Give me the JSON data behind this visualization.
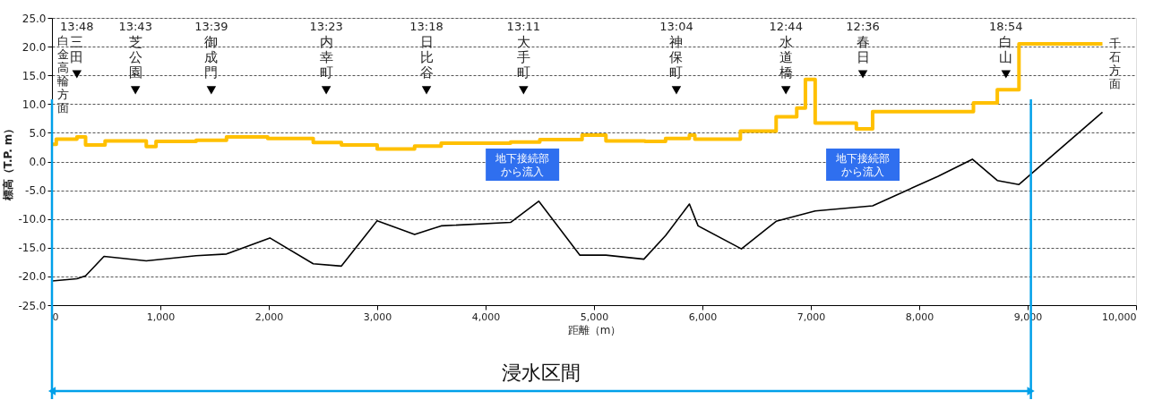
{
  "chart_data": {
    "type": "line",
    "xlabel": "距離（m）",
    "ylabel": "標高（T.P. m）",
    "xlim": [
      0,
      10000
    ],
    "xticks": [
      0,
      {
        "value": 1000,
        "label": "1,000"
      },
      {
        "value": 2000,
        "label": "2,000"
      },
      {
        "value": 3000,
        "label": "3,000"
      },
      {
        "value": 4000,
        "label": "4,000"
      },
      {
        "value": 5000,
        "label": "5,000"
      },
      {
        "value": 6000,
        "label": "6,000"
      },
      {
        "value": 7000,
        "label": "7,000"
      },
      {
        "value": 8000,
        "label": "8,000"
      },
      {
        "value": 9000,
        "label": "9,000"
      },
      {
        "value": 10000,
        "label": "10,000"
      }
    ],
    "ylim": [
      -25,
      25
    ],
    "yticks": [
      {
        "value": -25,
        "label": "-25.0"
      },
      {
        "value": -20,
        "label": "-20.0"
      },
      {
        "value": -15,
        "label": "-15.0"
      },
      {
        "value": -10,
        "label": "-10.0"
      },
      {
        "value": -5,
        "label": "-5.0"
      },
      {
        "value": 0,
        "label": "0.0"
      },
      {
        "value": 5,
        "label": "5.0"
      },
      {
        "value": 10,
        "label": "10.0"
      },
      {
        "value": 15,
        "label": "15.0"
      },
      {
        "value": 20,
        "label": "20.0"
      },
      {
        "value": 25,
        "label": "25.0"
      }
    ],
    "grid": "y",
    "series": [
      {
        "type": "step",
        "color": "#ffc000",
        "x": [
          0,
          40,
          230,
          310,
          490,
          870,
          960,
          1330,
          1610,
          1990,
          2410,
          2670,
          3000,
          3345,
          3590,
          4230,
          4500,
          4890,
          5110,
          5470,
          5660,
          5880,
          5930,
          6350,
          6680,
          6870,
          6950,
          7040,
          7420,
          7570,
          8500,
          8720,
          8920,
          9690
        ],
        "values": [
          3.0,
          3.9,
          4.3,
          2.9,
          3.6,
          2.6,
          3.5,
          3.7,
          4.3,
          4.0,
          3.3,
          2.9,
          2.2,
          2.7,
          3.2,
          3.4,
          3.8,
          4.6,
          3.6,
          3.5,
          4.0,
          4.6,
          3.9,
          5.3,
          7.8,
          9.3,
          14.3,
          6.7,
          5.7,
          8.7,
          10.2,
          12.5,
          20.5,
          20.5
        ]
      },
      {
        "color": "#000000",
        "x": [
          0,
          230,
          310,
          480,
          870,
          1330,
          1610,
          2010,
          2410,
          2670,
          3000,
          3345,
          3590,
          4230,
          4490,
          4870,
          5110,
          5460,
          5660,
          5880,
          5960,
          6360,
          6680,
          7040,
          7570,
          8170,
          8490,
          8720,
          8920,
          9690
        ],
        "values": [
          -20.8,
          -20.4,
          -19.9,
          -16.5,
          -17.3,
          -16.4,
          -16.1,
          -13.3,
          -17.8,
          -18.2,
          -10.3,
          -12.7,
          -11.2,
          -10.6,
          -6.9,
          -16.3,
          -16.3,
          -17.0,
          -12.9,
          -7.4,
          -11.2,
          -15.2,
          -10.4,
          -8.6,
          -7.7,
          -2.6,
          0.4,
          -3.3,
          -4.0,
          8.6
        ]
      },
      {
        "type": "scatter",
        "marker": "triangle",
        "color": "#000000",
        "x": [
          230,
          770,
          1470,
          2530,
          3455,
          4350,
          5760,
          6770,
          7480,
          8800
        ],
        "values": [
          15.2,
          12.4,
          12.4,
          12.4,
          12.4,
          12.4,
          12.4,
          12.4,
          15.2,
          15.2
        ]
      }
    ],
    "ref_lines": [
      {
        "axis": "x",
        "value": 0,
        "color": "#00a0e9"
      },
      {
        "axis": "x",
        "value": 9030,
        "color": "#00a0e9"
      }
    ],
    "annotations": [
      "13:48",
      "三田",
      "13:43",
      "芝公園",
      "13:39",
      "御成門",
      "13:23",
      "内幸町",
      "13:18",
      "日比谷",
      "13:11",
      "大手町",
      "13:04",
      "神保町",
      "12:44",
      "水道橋",
      "12:36",
      "春日",
      "18:54",
      "白山",
      "白金高輪方面",
      "千石方面",
      "地下接続部から流入",
      "地下接続部から流入",
      "浸水区間"
    ]
  }
}
